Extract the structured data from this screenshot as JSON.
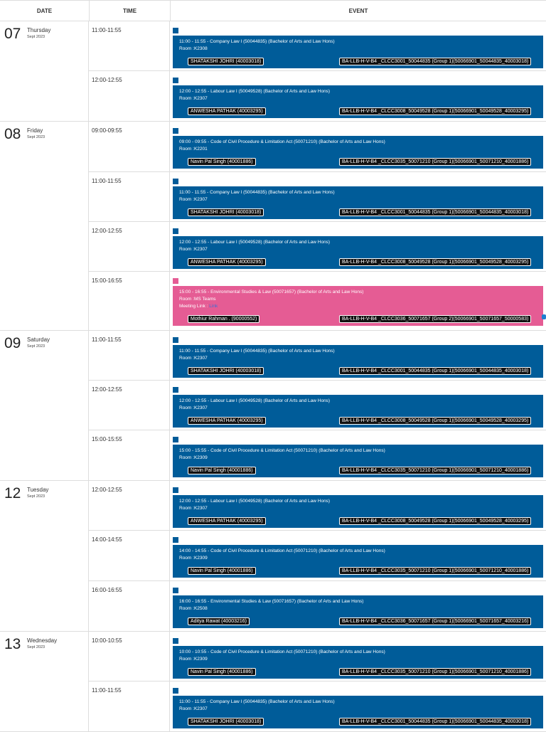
{
  "header": {
    "date": "DATE",
    "time": "TIME",
    "event": "EVENT"
  },
  "days": [
    {
      "num": "07",
      "weekday": "Thursday",
      "month": "Sept 2023",
      "slots": [
        {
          "time": "11:00-11:55",
          "color": "blue",
          "h": 70,
          "line1": "11:00 - 11:55 - Company Law I (50044835) (Bachelor of Arts and Law Hons)",
          "room": "Room :K2308",
          "faculty": "SHATAKSHI JOHRI (40003018)",
          "group": "BA-LLB-H-V-B4 _CLCC3001_50044835 (Group 1)(50066901_50044835_40003018)"
        },
        {
          "time": "12:00-12:55",
          "color": "blue",
          "h": 70,
          "line1": "12:00 - 12:55 - Labour Law I (50049528) (Bachelor of Arts and Law Hons)",
          "room": "Room :K2307",
          "faculty": "ANWESHA PATHAK (40003295)",
          "group": "BA-LLB-H-V-B4 _CLCC3008_50049528 (Group 1)(50066901_50049528_40003295)"
        }
      ]
    },
    {
      "num": "08",
      "weekday": "Friday",
      "month": "Sept 2023",
      "slots": [
        {
          "time": "09:00-09:55",
          "color": "blue",
          "h": 71,
          "line1": "09:00 - 09:55 - Code of Civil Procedure & Limitation Act (50071210) (Bachelor of Arts and Law Hons)",
          "room": "Room :K2201",
          "faculty": "Navin Pal Singh (40001886)",
          "group": "BA-LLB-H-V-B4 _CLCC3035_50071210 (Group 1)(50066901_50071210_40001886)"
        },
        {
          "time": "11:00-11:55",
          "color": "blue",
          "h": 70,
          "line1": "11:00 - 11:55 - Company Law I (50044835) (Bachelor of Arts and Law Hons)",
          "room": "Room :K2307",
          "faculty": "SHATAKSHI JOHRI (40003018)",
          "group": "BA-LLB-H-V-B4 _CLCC3001_50044835 (Group 1)(50066901_50044835_40003018)"
        },
        {
          "time": "12:00-12:55",
          "color": "blue",
          "h": 70,
          "line1": "12:00 - 12:55 - Labour Law I (50049528) (Bachelor of Arts and Law Hons)",
          "room": "Room :K2307",
          "faculty": "ANWESHA PATHAK (40003295)",
          "group": "BA-LLB-H-V-B4 _CLCC3008_50049528 (Group 1)(50066901_50049528_40003295)"
        },
        {
          "time": "15:00-16:55",
          "color": "pink",
          "h": 82,
          "line1": "15:00 - 16:55 - Environmental Studies & Law (50071657) (Bachelor of Arts and Law Hons)",
          "room": "Room :MS Teams",
          "meeting_label": "Meeting Link : ",
          "meeting_link": "Link",
          "faculty": "Mothiur Rahman . (90000552)",
          "group": "BA-LLB-H-V-B4 _CLCC3036_50071657 (Group 2)(50066901_50071657_50000583)"
        }
      ]
    },
    {
      "num": "09",
      "weekday": "Saturday",
      "month": "Sept 2023",
      "slots": [
        {
          "time": "11:00-11:55",
          "color": "blue",
          "h": 70,
          "line1": "11:00 - 11:55 - Company Law I (50044835) (Bachelor of Arts and Law Hons)",
          "room": "Room :K2307",
          "faculty": "SHATAKSHI JOHRI (40003018)",
          "group": "BA-LLB-H-V-B4 _CLCC3001_50044835 (Group 1)(50066901_50044835_40003018)"
        },
        {
          "time": "12:00-12:55",
          "color": "blue",
          "h": 70,
          "line1": "12:00 - 12:55 - Labour Law I (50049528) (Bachelor of Arts and Law Hons)",
          "room": "Room :K2307",
          "faculty": "ANWESHA PATHAK (40003295)",
          "group": "BA-LLB-H-V-B4 _CLCC3008_50049528 (Group 1)(50066901_50049528_40003295)"
        },
        {
          "time": "15:00-15:55",
          "color": "blue",
          "h": 70,
          "line1": "15:00 - 15:55 - Code of Civil Procedure & Limitation Act (50071210) (Bachelor of Arts and Law Hons)",
          "room": "Room :K2309",
          "faculty": "Navin Pal Singh (40001886)",
          "group": "BA-LLB-H-V-B4 _CLCC3035_50071210 (Group 1)(50066901_50071210_40001886)"
        }
      ]
    },
    {
      "num": "12",
      "weekday": "Tuesday",
      "month": "Sept 2023",
      "slots": [
        {
          "time": "12:00-12:55",
          "color": "blue",
          "h": 70,
          "line1": "12:00 - 12:55 - Labour Law I (50049528) (Bachelor of Arts and Law Hons)",
          "room": "Room :K2307",
          "faculty": "ANWESHA PATHAK (40003295)",
          "group": "BA-LLB-H-V-B4 _CLCC3008_50049528 (Group 1)(50066901_50049528_40003295)"
        },
        {
          "time": "14:00-14:55",
          "color": "blue",
          "h": 71,
          "line1": "14:00 - 14:55 - Code of Civil Procedure & Limitation Act (50071210) (Bachelor of Arts and Law Hons)",
          "room": "Room :K2309",
          "faculty": "Navin Pal Singh (40001886)",
          "group": "BA-LLB-H-V-B4 _CLCC3035_50071210 (Group 1)(50066901_50071210_40001886)"
        },
        {
          "time": "16:00-16:55",
          "color": "blue",
          "h": 70,
          "line1": "16:00 - 16:55 - Environmental Studies & Law (50071657) (Bachelor of Arts and Law Hons)",
          "room": "Room :K2508",
          "faculty": "Aditya Rawat (40003216)",
          "group": "BA-LLB-H-V-B4 _CLCC3036_50071657 (Group 1)(50066901_50071657_40003216)"
        }
      ]
    },
    {
      "num": "13",
      "weekday": "Wednesday",
      "month": "Sept 2023",
      "slots": [
        {
          "time": "10:00-10:55",
          "color": "blue",
          "h": 70,
          "line1": "10:00 - 10:55 - Code of Civil Procedure & Limitation Act (50071210) (Bachelor of Arts and Law Hons)",
          "room": "Room :K2309",
          "faculty": "Navin Pal Singh (40001886)",
          "group": "BA-LLB-H-V-B4 _CLCC3035_50071210 (Group 1)(50066901_50071210_40001886)"
        },
        {
          "time": "11:00-11:55",
          "color": "blue",
          "h": 70,
          "line1": "11:00 - 11:55 - Company Law I (50044835) (Bachelor of Arts and Law Hons)",
          "room": "Room :K2307",
          "faculty": "SHATAKSHI JOHRI (40003018)",
          "group": "BA-LLB-H-V-B4 _CLCC3001_50044835 (Group 1)(50066901_50044835_40003018)"
        }
      ]
    }
  ]
}
